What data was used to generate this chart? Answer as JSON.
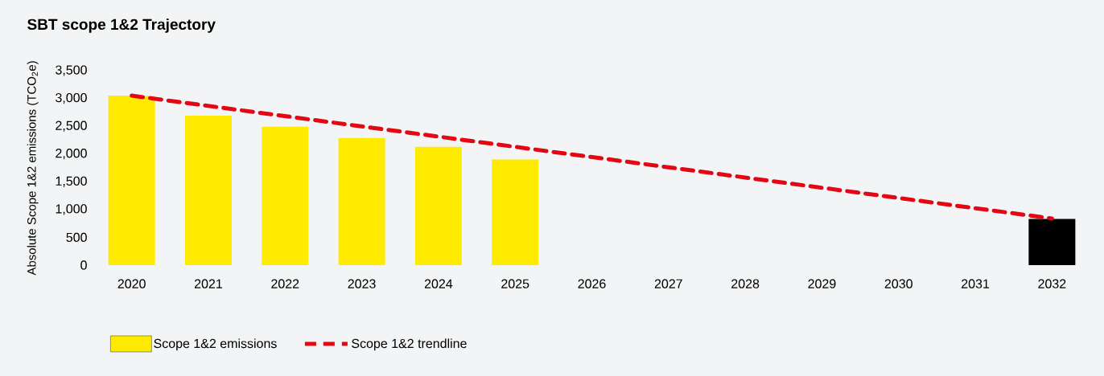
{
  "chart_data": {
    "type": "bar",
    "title": "SBT scope 1&2 Trajectory",
    "ylabel": "Absolute Scope 1&2 emissions (TCO$_{2}$e)",
    "categories": [
      "2020",
      "2021",
      "2022",
      "2023",
      "2024",
      "2025",
      "2026",
      "2027",
      "2028",
      "2029",
      "2030",
      "2031",
      "2032"
    ],
    "series": [
      {
        "name": "Scope 1&2 emissions",
        "color": "#ffeb00",
        "colors": [
          "#ffeb00",
          "#ffeb00",
          "#ffeb00",
          "#ffeb00",
          "#ffeb00",
          "#ffeb00",
          "#ffeb00",
          "#ffeb00",
          "#ffeb00",
          "#ffeb00",
          "#ffeb00",
          "#ffeb00",
          "#000000"
        ],
        "values": [
          3050,
          2690,
          2490,
          2290,
          2130,
          1900,
          null,
          null,
          null,
          null,
          null,
          null,
          830
        ]
      },
      {
        "name": "Scope 1&2 trendline",
        "type": "line",
        "color": "#e30613",
        "line_style": "dashed",
        "values": [
          3050,
          null,
          null,
          null,
          null,
          null,
          null,
          null,
          null,
          null,
          null,
          null,
          840
        ]
      }
    ],
    "ylim": [
      0,
      3500
    ],
    "yticks": [
      {
        "value": 0,
        "label": "0"
      },
      {
        "value": 500,
        "label": "500"
      },
      {
        "value": 1000,
        "label": "1,000"
      },
      {
        "value": 1500,
        "label": "1,500"
      },
      {
        "value": 2000,
        "label": "2,000"
      },
      {
        "value": 2500,
        "label": "2,500"
      },
      {
        "value": 3000,
        "label": "3,000"
      },
      {
        "value": 3500,
        "label": "3,500"
      }
    ],
    "grid": false,
    "legend": "bottom left"
  }
}
